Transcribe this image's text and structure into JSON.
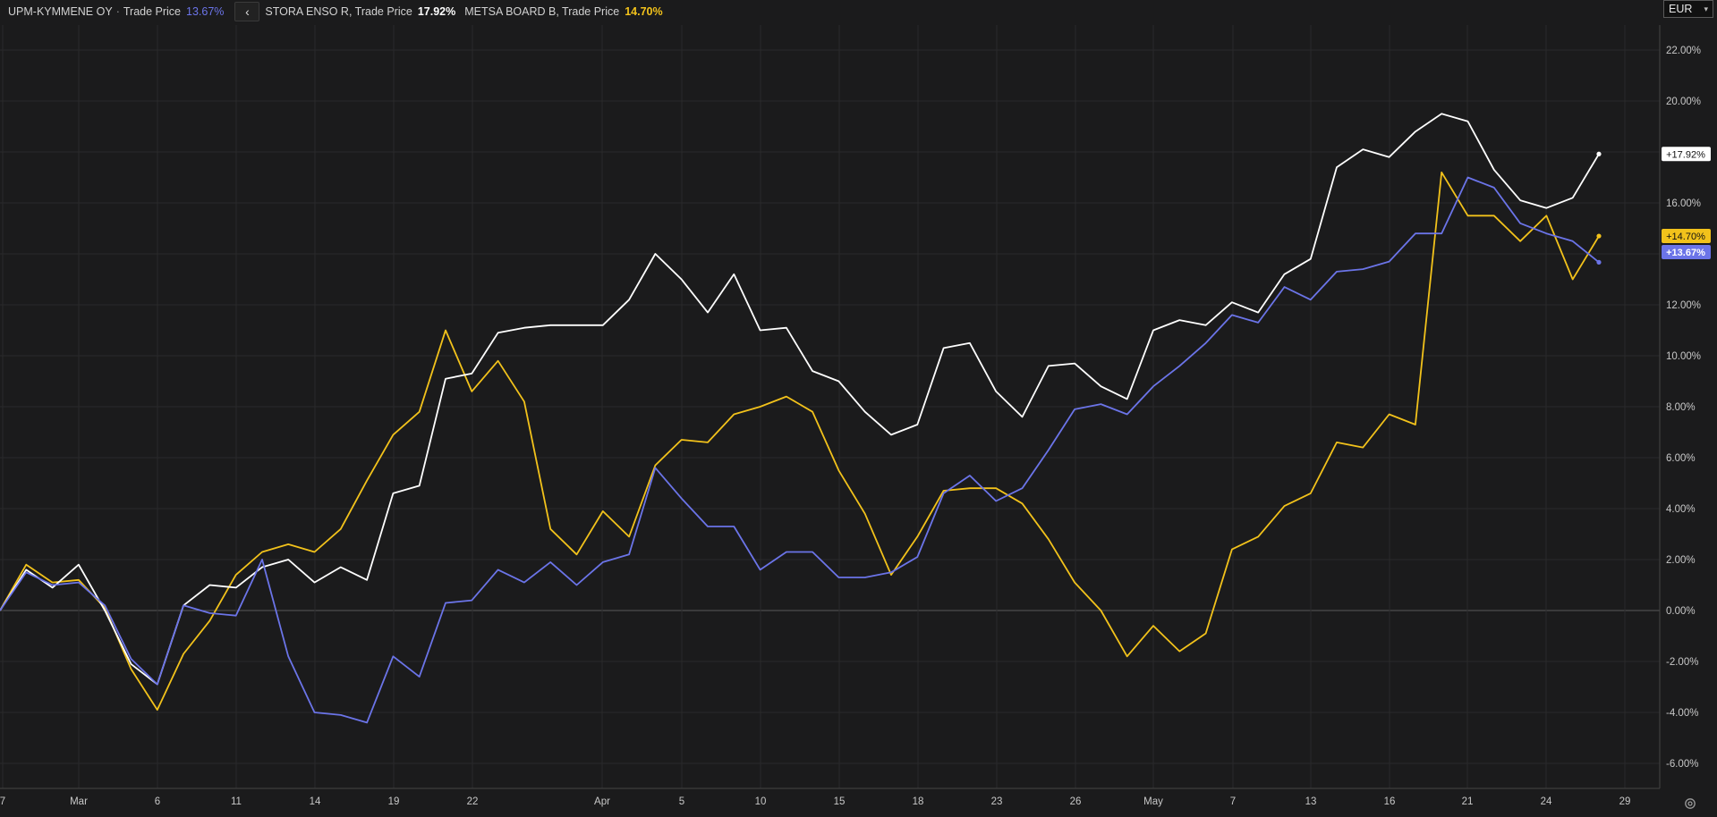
{
  "legend": {
    "series1_name": "UPM-KYMMENE OY",
    "series1_label": "Trade Price",
    "series1_value": "13.67%",
    "series2_name": "STORA ENSO R, Trade Price",
    "series2_value": "17.92%",
    "series3_name": "METSA BOARD B, Trade Price",
    "series3_value": "14.70%",
    "collapse_icon": "chevron-left-icon"
  },
  "currency": {
    "selected": "EUR",
    "icon": "chevron-down-icon"
  },
  "settings": {
    "icon": "gear-icon"
  },
  "colors": {
    "background": "#1b1b1c",
    "grid": "#2a2a2b",
    "upm": "#6b74e8",
    "stora": "#ffffff",
    "metsa": "#f2c21b"
  },
  "chart_data": {
    "type": "line",
    "x_tick_labels": [
      "7",
      "Mar",
      "6",
      "11",
      "14",
      "19",
      "22",
      "Apr",
      "5",
      "10",
      "15",
      "18",
      "23",
      "26",
      "May",
      "7",
      "13",
      "16",
      "21",
      "24",
      "29"
    ],
    "ylim": [
      -7,
      23
    ],
    "y_ticks": [
      22,
      20,
      18,
      16,
      14,
      12,
      10,
      8,
      6,
      4,
      2,
      0,
      -2,
      -4,
      -6
    ],
    "y_tick_labels": [
      "22.00%",
      "20.00%",
      "18.00%",
      "16.00%",
      "14.00%",
      "12.00%",
      "10.00%",
      "8.00%",
      "6.00%",
      "4.00%",
      "2.00%",
      "0.00%",
      "-2.00%",
      "-4.00%",
      "-6.00%"
    ],
    "series": [
      {
        "name": "UPM-KYMMENE OY",
        "key": "upm",
        "end_label": "+13.67%",
        "values": [
          0,
          1.5,
          1.0,
          1.1,
          0.2,
          -1.9,
          -2.9,
          0.2,
          -0.1,
          -0.2,
          2.0,
          -1.8,
          -4.0,
          -4.1,
          -4.4,
          -1.8,
          -2.6,
          0.3,
          0.4,
          1.6,
          1.1,
          1.9,
          1.0,
          1.9,
          2.2,
          5.6,
          4.4,
          3.3,
          3.3,
          1.6,
          2.3,
          2.3,
          1.3,
          1.3,
          1.5,
          2.1,
          4.6,
          5.3,
          4.3,
          4.8,
          6.3,
          7.9,
          8.1,
          7.7,
          8.8,
          9.6,
          10.5,
          11.6,
          11.3,
          12.7,
          12.2,
          13.3,
          13.4,
          13.7,
          14.8,
          14.8,
          17.0,
          16.6,
          15.2,
          14.8,
          14.5,
          13.67
        ]
      },
      {
        "name": "STORA ENSO R",
        "key": "stora",
        "end_label": "+17.92%",
        "values": [
          0,
          1.6,
          0.9,
          1.8,
          0.0,
          -2.1,
          -2.9,
          0.2,
          1.0,
          0.9,
          1.7,
          2.0,
          1.1,
          1.7,
          1.2,
          4.6,
          4.9,
          9.1,
          9.3,
          10.9,
          11.1,
          11.2,
          11.2,
          11.2,
          12.2,
          14.0,
          13.0,
          11.7,
          13.2,
          11.0,
          11.1,
          9.4,
          9.0,
          7.8,
          6.9,
          7.3,
          10.3,
          10.5,
          8.6,
          7.6,
          9.6,
          9.7,
          8.8,
          8.3,
          11.0,
          11.4,
          11.2,
          12.1,
          11.7,
          13.2,
          13.8,
          17.4,
          18.1,
          17.8,
          18.8,
          19.5,
          19.2,
          17.3,
          16.1,
          15.8,
          16.2,
          17.92
        ]
      },
      {
        "name": "METSA BOARD B",
        "key": "metsa",
        "end_label": "+14.70%",
        "values": [
          0,
          1.8,
          1.1,
          1.2,
          0.1,
          -2.3,
          -3.9,
          -1.7,
          -0.4,
          1.4,
          2.3,
          2.6,
          2.3,
          3.2,
          5.1,
          6.9,
          7.8,
          11.0,
          8.6,
          9.8,
          8.2,
          3.2,
          2.2,
          3.9,
          2.9,
          5.7,
          6.7,
          6.6,
          7.7,
          8.0,
          8.4,
          7.8,
          5.5,
          3.8,
          1.4,
          2.9,
          4.7,
          4.8,
          4.8,
          4.2,
          2.8,
          1.1,
          0.0,
          -1.8,
          -0.6,
          -1.6,
          -0.9,
          2.4,
          2.9,
          4.1,
          4.6,
          6.6,
          6.4,
          7.7,
          7.3,
          17.2,
          15.5,
          15.5,
          14.5,
          15.5,
          13.0,
          14.7
        ]
      }
    ]
  }
}
